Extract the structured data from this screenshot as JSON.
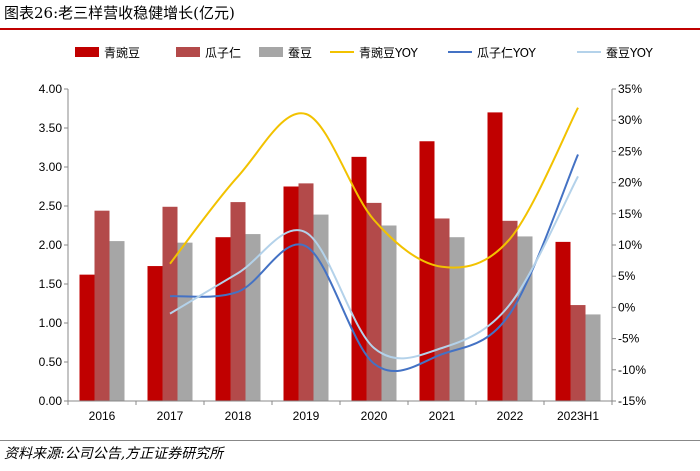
{
  "header": {
    "title": "图表26:老三样营收稳健增长(亿元)"
  },
  "footer": {
    "source": "资料来源:公司公告,方正证券研究所"
  },
  "chart_data": {
    "type": "bar",
    "title": "图表26:老三样营收稳健增长(亿元)",
    "categories": [
      "2016",
      "2017",
      "2018",
      "2019",
      "2020",
      "2021",
      "2022",
      "2023H1"
    ],
    "bar_series": [
      {
        "name": "青豌豆",
        "color": "#c00000",
        "values": [
          1.62,
          1.73,
          2.1,
          2.75,
          3.13,
          3.33,
          3.7,
          2.04
        ]
      },
      {
        "name": "瓜子仁",
        "color": "#b34a4a",
        "values": [
          2.44,
          2.49,
          2.55,
          2.79,
          2.54,
          2.34,
          2.31,
          1.23
        ]
      },
      {
        "name": "蚕豆",
        "color": "#a6a6a6",
        "values": [
          2.05,
          2.03,
          2.14,
          2.39,
          2.25,
          2.1,
          2.11,
          1.11
        ]
      }
    ],
    "line_series": [
      {
        "name": "青豌豆YOY",
        "color": "#f2c200",
        "values": [
          null,
          7.0,
          21.0,
          31.0,
          14.0,
          6.5,
          11.0,
          32.0
        ]
      },
      {
        "name": "瓜子仁YOY",
        "color": "#4472c4",
        "values": [
          null,
          1.8,
          2.5,
          9.8,
          -9.0,
          -7.5,
          -1.0,
          24.5
        ]
      },
      {
        "name": "蚕豆YOY",
        "color": "#b4d2ea",
        "values": [
          null,
          -1.0,
          5.5,
          12.0,
          -6.5,
          -6.5,
          0.5,
          21.0
        ]
      }
    ],
    "y_left": {
      "min": 0,
      "max": 4,
      "step": 0.5,
      "tick_labels": [
        "0.00",
        "0.50",
        "1.00",
        "1.50",
        "2.00",
        "2.50",
        "3.00",
        "3.50",
        "4.00"
      ]
    },
    "y_right": {
      "min": -15,
      "max": 35,
      "step": 5,
      "tick_labels": [
        "-15%",
        "-10%",
        "-5%",
        "0%",
        "5%",
        "10%",
        "15%",
        "20%",
        "25%",
        "30%",
        "35%"
      ]
    },
    "grid": false,
    "legend_position": "top"
  }
}
